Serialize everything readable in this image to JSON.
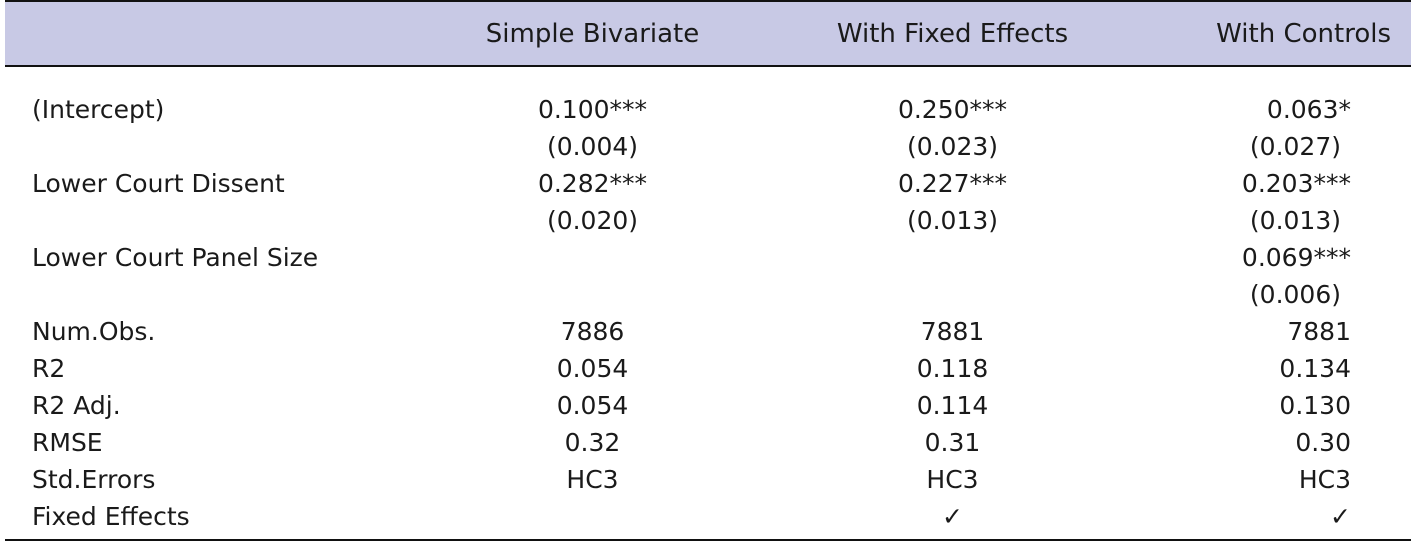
{
  "table": {
    "columns": [
      "",
      "Simple Bivariate",
      "With Fixed Effects",
      "With Controls"
    ],
    "rows": [
      {
        "label": "(Intercept)",
        "values": [
          "0.100***",
          "0.250***",
          "0.063*"
        ]
      },
      {
        "label": "",
        "values": [
          "(0.004)",
          "(0.023)",
          "(0.027)"
        ]
      },
      {
        "label": "Lower Court Dissent",
        "values": [
          "0.282***",
          "0.227***",
          "0.203***"
        ]
      },
      {
        "label": "",
        "values": [
          "(0.020)",
          "(0.013)",
          "(0.013)"
        ]
      },
      {
        "label": "Lower Court Panel Size",
        "values": [
          "",
          "",
          "0.069***"
        ]
      },
      {
        "label": "",
        "values": [
          "",
          "",
          "(0.006)"
        ]
      },
      {
        "label": "Num.Obs.",
        "values": [
          "7886",
          "7881",
          "7881"
        ]
      },
      {
        "label": "R2",
        "values": [
          "0.054",
          "0.118",
          "0.134"
        ]
      },
      {
        "label": "R2 Adj.",
        "values": [
          "0.054",
          "0.114",
          "0.130"
        ]
      },
      {
        "label": "RMSE",
        "values": [
          "0.32",
          "0.31",
          "0.30"
        ]
      },
      {
        "label": "Std.Errors",
        "values": [
          "HC3",
          "HC3",
          "HC3"
        ]
      },
      {
        "label": "Fixed Effects",
        "values": [
          "",
          "✓",
          "✓"
        ]
      }
    ]
  },
  "colors": {
    "header_background": "#c8c9e5",
    "rule": "#111111"
  }
}
